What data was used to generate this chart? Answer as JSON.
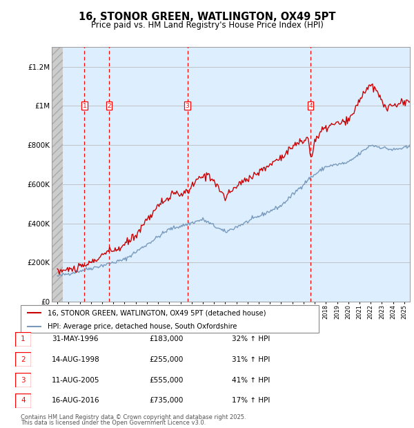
{
  "title": "16, STONOR GREEN, WATLINGTON, OX49 5PT",
  "subtitle": "Price paid vs. HM Land Registry's House Price Index (HPI)",
  "ylabel_ticks": [
    0,
    200000,
    400000,
    600000,
    800000,
    1000000,
    1200000
  ],
  "ylabel_labels": [
    "£0",
    "£200K",
    "£400K",
    "£600K",
    "£800K",
    "£1M",
    "£1.2M"
  ],
  "xmin": 1993.5,
  "xmax": 2025.5,
  "ymin": 0,
  "ymax": 1300000,
  "hatch_end_year": 1994.5,
  "sale_events": [
    {
      "num": 1,
      "year": 1996.42,
      "price": 183000,
      "date": "31-MAY-1996",
      "pct": "32%",
      "label": "£183,000"
    },
    {
      "num": 2,
      "year": 1998.62,
      "price": 255000,
      "date": "14-AUG-1998",
      "pct": "31%",
      "label": "£255,000"
    },
    {
      "num": 3,
      "year": 2005.62,
      "price": 555000,
      "date": "11-AUG-2005",
      "pct": "41%",
      "label": "£555,000"
    },
    {
      "num": 4,
      "year": 2016.62,
      "price": 735000,
      "date": "16-AUG-2016",
      "pct": "17%",
      "label": "£735,000"
    }
  ],
  "red_line_color": "#cc0000",
  "blue_line_color": "#7799bb",
  "bg_color": "#ddeeff",
  "grid_color": "#bbbbbb",
  "legend_line1": "16, STONOR GREEN, WATLINGTON, OX49 5PT (detached house)",
  "legend_line2": "HPI: Average price, detached house, South Oxfordshire",
  "footer1": "Contains HM Land Registry data © Crown copyright and database right 2025.",
  "footer2": "This data is licensed under the Open Government Licence v3.0."
}
